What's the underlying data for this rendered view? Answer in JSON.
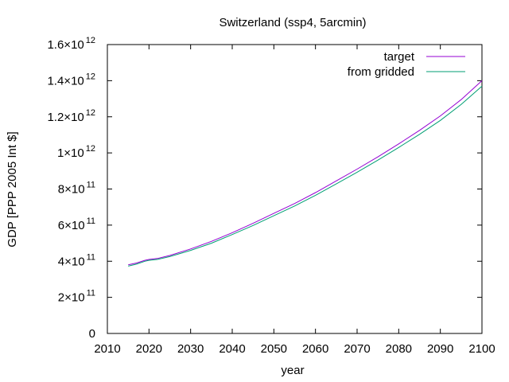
{
  "chart_data": {
    "type": "line",
    "title": "Switzerland (ssp4, 5arcmin)",
    "xlabel": "year",
    "ylabel": "GDP [PPP 2005 Int $]",
    "xlim": [
      2010,
      2100
    ],
    "ylim": [
      0,
      1600000000000
    ],
    "x_ticks": [
      {
        "value": 2010,
        "label": "2010"
      },
      {
        "value": 2020,
        "label": "2020"
      },
      {
        "value": 2030,
        "label": "2030"
      },
      {
        "value": 2040,
        "label": "2040"
      },
      {
        "value": 2050,
        "label": "2050"
      },
      {
        "value": 2060,
        "label": "2060"
      },
      {
        "value": 2070,
        "label": "2070"
      },
      {
        "value": 2080,
        "label": "2080"
      },
      {
        "value": 2090,
        "label": "2090"
      },
      {
        "value": 2100,
        "label": "2100"
      }
    ],
    "y_ticks": [
      {
        "value": 0,
        "mantissa": "0",
        "exponent": ""
      },
      {
        "value": 200000000000,
        "mantissa": "2×10",
        "exponent": "11"
      },
      {
        "value": 400000000000,
        "mantissa": "4×10",
        "exponent": "11"
      },
      {
        "value": 600000000000,
        "mantissa": "6×10",
        "exponent": "11"
      },
      {
        "value": 800000000000,
        "mantissa": "8×10",
        "exponent": "11"
      },
      {
        "value": 1000000000000,
        "mantissa": "1×10",
        "exponent": "12"
      },
      {
        "value": 1200000000000,
        "mantissa": "1.2×10",
        "exponent": "12"
      },
      {
        "value": 1400000000000,
        "mantissa": "1.4×10",
        "exponent": "12"
      },
      {
        "value": 1600000000000,
        "mantissa": "1.6×10",
        "exponent": "12"
      }
    ],
    "grid": false,
    "legend_position": "top-right",
    "series": [
      {
        "name": "target",
        "color": "#9400d3",
        "x": [
          2015,
          2017,
          2019,
          2020,
          2022,
          2025,
          2030,
          2035,
          2040,
          2045,
          2050,
          2055,
          2060,
          2065,
          2070,
          2075,
          2080,
          2085,
          2090,
          2095,
          2100
        ],
        "y": [
          380000000000,
          390000000000,
          405000000000,
          410000000000,
          415000000000,
          432000000000,
          468000000000,
          510000000000,
          558000000000,
          610000000000,
          665000000000,
          720000000000,
          780000000000,
          845000000000,
          910000000000,
          978000000000,
          1050000000000,
          1125000000000,
          1205000000000,
          1295000000000,
          1400000000000
        ]
      },
      {
        "name": "from gridded",
        "color": "#009e73",
        "x": [
          2015,
          2017,
          2019,
          2020,
          2022,
          2025,
          2030,
          2035,
          2040,
          2045,
          2050,
          2055,
          2060,
          2065,
          2070,
          2075,
          2080,
          2085,
          2090,
          2095,
          2100
        ],
        "y": [
          373000000000,
          384000000000,
          400000000000,
          405000000000,
          410000000000,
          426000000000,
          460000000000,
          500000000000,
          548000000000,
          598000000000,
          652000000000,
          706000000000,
          765000000000,
          828000000000,
          893000000000,
          960000000000,
          1030000000000,
          1103000000000,
          1180000000000,
          1268000000000,
          1370000000000
        ]
      }
    ]
  }
}
